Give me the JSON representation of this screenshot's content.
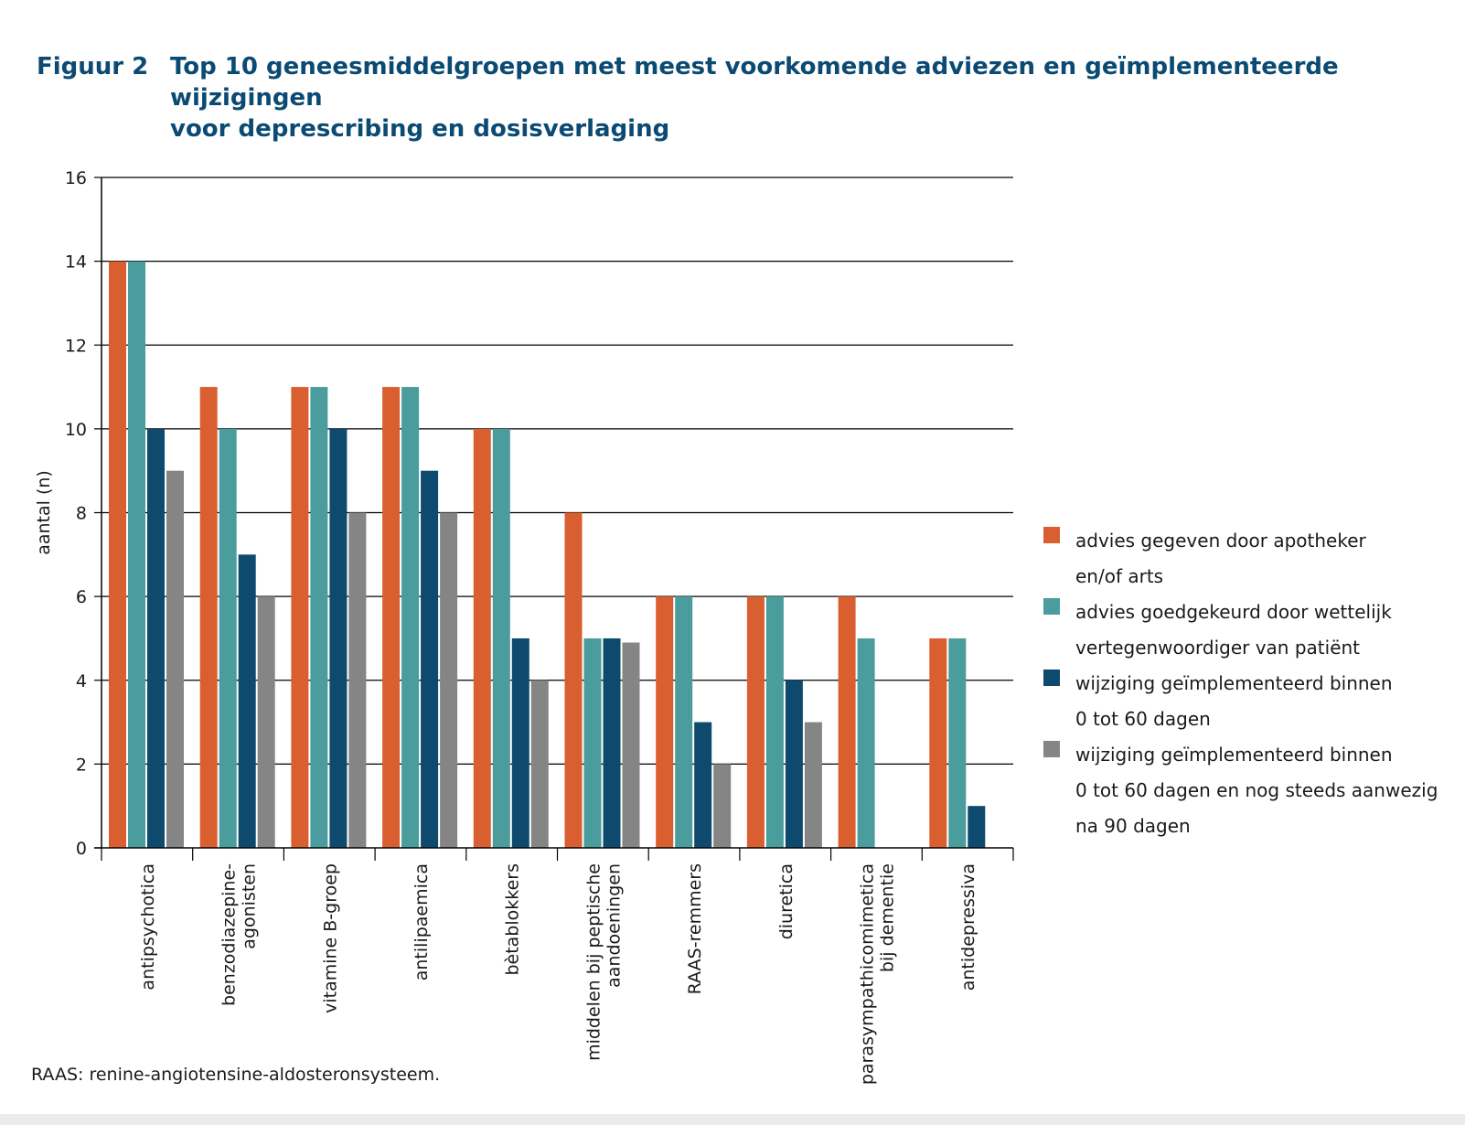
{
  "figure": {
    "label": "Figuur 2",
    "title_lines": [
      "Top 10 geneesmiddelgroepen met meest voorkomende adviezen en geïmplementeerde wijzigingen",
      "voor deprescribing en dosisverlaging"
    ],
    "footnote": "RAAS: renine-angiotensine-aldosteronsysteem."
  },
  "colors": {
    "title": "#0b4a73",
    "axis": "#000000",
    "grid": "#000000",
    "text": "#1a1a1a"
  },
  "chart_data": {
    "type": "bar",
    "title": "Top 10 geneesmiddelgroepen met meest voorkomende adviezen en geïmplementeerde wijzigingen voor deprescribing en dosisverlaging",
    "xlabel": "",
    "ylabel": "aantal (n)",
    "ylim": [
      0,
      16
    ],
    "yticks": [
      0,
      2,
      4,
      6,
      8,
      10,
      12,
      14,
      16
    ],
    "grid": true,
    "legend_position": "right",
    "categories": [
      [
        "antipsychotica"
      ],
      [
        "benzodiazepine-",
        "agonisten"
      ],
      [
        "vitamine B-groep"
      ],
      [
        "antilipaemica"
      ],
      [
        "bètablokkers"
      ],
      [
        "middelen bij peptische",
        "aandoeningen"
      ],
      [
        "RAAS-remmers"
      ],
      [
        "diuretica"
      ],
      [
        "parasympathicomimetica",
        "bij dementie"
      ],
      [
        "antidepressiva"
      ]
    ],
    "series": [
      {
        "name_lines": [
          "advies gegeven door apotheker",
          "en/of arts"
        ],
        "color": "#d95f30",
        "values": [
          14,
          11,
          11,
          11,
          10,
          8,
          6,
          6,
          6,
          5
        ]
      },
      {
        "name_lines": [
          "advies goedgekeurd door wettelijk",
          "vertegenwoordiger van patiënt"
        ],
        "color": "#4a9c9d",
        "values": [
          14,
          10,
          11,
          11,
          10,
          5,
          6,
          6,
          5,
          5
        ]
      },
      {
        "name_lines": [
          "wijziging geïmplementeerd binnen",
          "0 tot 60 dagen"
        ],
        "color": "#0e4a6e",
        "values": [
          10,
          7,
          10,
          9,
          5,
          5,
          3,
          4,
          0,
          1
        ]
      },
      {
        "name_lines": [
          "wijziging geïmplementeerd binnen",
          "0 tot 60 dagen en nog steeds aanwezig",
          "na 90 dagen"
        ],
        "color": "#858585",
        "values": [
          9,
          6,
          8,
          8,
          4,
          4.9,
          2,
          3,
          0,
          0
        ]
      }
    ]
  }
}
